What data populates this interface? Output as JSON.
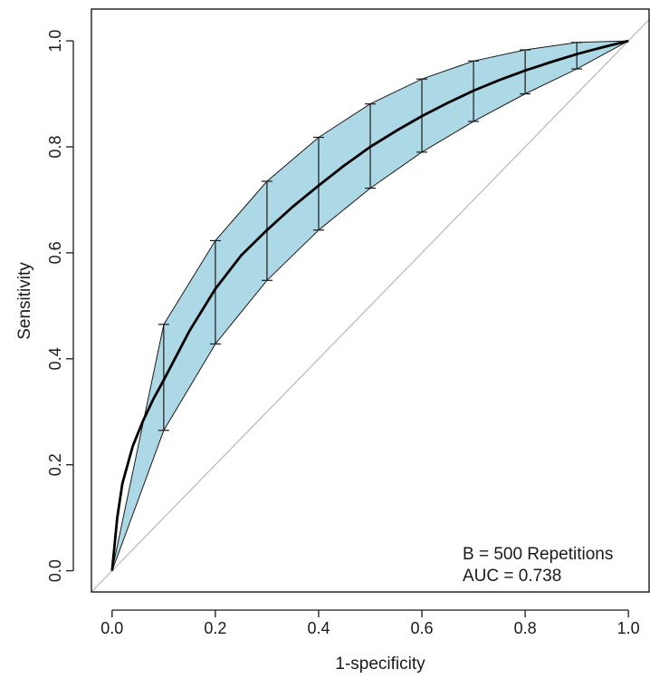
{
  "chart_data": {
    "type": "line",
    "title": "",
    "xlabel": "1-specificity",
    "ylabel": "Sensitivity",
    "xlim": [
      -0.04,
      1.04
    ],
    "ylim": [
      -0.04,
      1.06
    ],
    "x_ticks": [
      0.0,
      0.2,
      0.4,
      0.6,
      0.8,
      1.0
    ],
    "x_tick_labels": [
      "0.0",
      "0.2",
      "0.4",
      "0.6",
      "0.8",
      "1.0"
    ],
    "y_ticks": [
      0.0,
      0.2,
      0.4,
      0.6,
      0.8,
      1.0
    ],
    "y_tick_labels": [
      "0.0",
      "0.2",
      "0.4",
      "0.6",
      "0.8",
      "1.0"
    ],
    "grid": false,
    "legend": "none",
    "annotations": [
      "B = 500 Repetitions",
      "AUC = 0.738"
    ],
    "ci_band": {
      "x": [
        0.0,
        0.1,
        0.2,
        0.3,
        0.4,
        0.5,
        0.6,
        0.7,
        0.8,
        0.9,
        1.0
      ],
      "lower": [
        0.0,
        0.265,
        0.428,
        0.548,
        0.643,
        0.722,
        0.79,
        0.848,
        0.9,
        0.947,
        1.0
      ],
      "upper": [
        0.0,
        0.465,
        0.623,
        0.735,
        0.818,
        0.881,
        0.928,
        0.962,
        0.983,
        0.997,
        1.0
      ]
    },
    "error_bars": {
      "x": [
        0.1,
        0.2,
        0.3,
        0.4,
        0.5,
        0.6,
        0.7,
        0.8,
        0.9
      ],
      "lower": [
        0.265,
        0.428,
        0.548,
        0.643,
        0.722,
        0.79,
        0.848,
        0.9,
        0.947
      ],
      "upper": [
        0.465,
        0.623,
        0.735,
        0.818,
        0.881,
        0.928,
        0.962,
        0.983,
        0.997
      ]
    },
    "roc_curve": {
      "x": [
        0.0,
        0.01,
        0.02,
        0.04,
        0.06,
        0.08,
        0.1,
        0.15,
        0.2,
        0.25,
        0.3,
        0.35,
        0.4,
        0.45,
        0.5,
        0.55,
        0.6,
        0.65,
        0.7,
        0.75,
        0.8,
        0.85,
        0.9,
        0.95,
        1.0
      ],
      "y": [
        0.0,
        0.1,
        0.165,
        0.235,
        0.283,
        0.324,
        0.36,
        0.453,
        0.532,
        0.595,
        0.643,
        0.687,
        0.727,
        0.765,
        0.8,
        0.83,
        0.858,
        0.883,
        0.906,
        0.926,
        0.944,
        0.96,
        0.975,
        0.988,
        1.0
      ]
    },
    "reference_line": {
      "slope": 1,
      "intercept": 0
    },
    "colors": {
      "band_fill": "#add8e6",
      "band_edge": "#1a1a1a",
      "roc_line": "#000000",
      "error_bar": "#1a1a1a",
      "reference_line": "#bdbdbd",
      "axis": "#1a1a1a"
    }
  }
}
